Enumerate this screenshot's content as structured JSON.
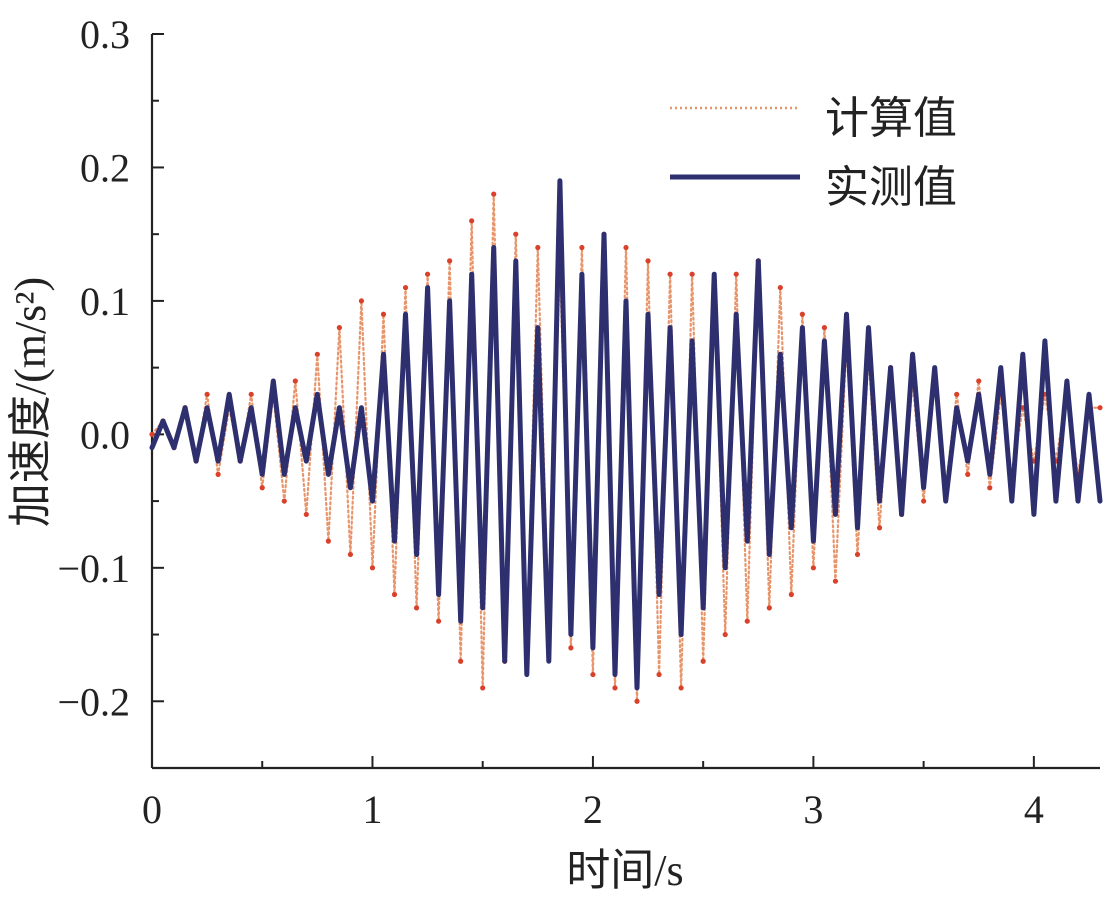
{
  "chart_data": {
    "type": "line",
    "xlabel": "时间/s",
    "ylabel": "加速度/(m/s²)",
    "xlim": [
      0,
      4.3
    ],
    "ylim": [
      -0.25,
      0.3
    ],
    "x_ticks": [
      0,
      1,
      2,
      3,
      4
    ],
    "x_tick_labels": [
      "0",
      "1",
      "2",
      "3",
      "4"
    ],
    "x_minor_ticks": [
      0.5,
      1.5,
      2.5,
      3.5
    ],
    "y_ticks": [
      -0.2,
      -0.1,
      0.0,
      0.1,
      0.2,
      0.3
    ],
    "y_tick_labels": [
      "−0.2",
      "−0.1",
      "0.0",
      "0.1",
      "0.2",
      "0.3"
    ],
    "grid": false,
    "legend_position": "top-right",
    "series": [
      {
        "name": "计算值",
        "style": "dotted",
        "color": "#e8956b",
        "dot_color": "#d9412a",
        "x": [
          0.0,
          0.05,
          0.1,
          0.15,
          0.2,
          0.25,
          0.3,
          0.35,
          0.4,
          0.45,
          0.5,
          0.55,
          0.6,
          0.65,
          0.7,
          0.75,
          0.8,
          0.85,
          0.9,
          0.95,
          1.0,
          1.05,
          1.1,
          1.15,
          1.2,
          1.25,
          1.3,
          1.35,
          1.4,
          1.45,
          1.5,
          1.55,
          1.6,
          1.65,
          1.7,
          1.75,
          1.8,
          1.85,
          1.9,
          1.95,
          2.0,
          2.05,
          2.1,
          2.15,
          2.2,
          2.25,
          2.3,
          2.35,
          2.4,
          2.45,
          2.5,
          2.55,
          2.6,
          2.65,
          2.7,
          2.75,
          2.8,
          2.85,
          2.9,
          2.95,
          3.0,
          3.05,
          3.1,
          3.15,
          3.2,
          3.25,
          3.3,
          3.35,
          3.4,
          3.45,
          3.5,
          3.55,
          3.6,
          3.65,
          3.7,
          3.75,
          3.8,
          3.85,
          3.9,
          3.95,
          4.0,
          4.05,
          4.1,
          4.15,
          4.2,
          4.25,
          4.3
        ],
        "values": [
          0.0,
          0.01,
          -0.01,
          0.02,
          -0.02,
          0.03,
          -0.03,
          0.02,
          -0.02,
          0.03,
          -0.04,
          0.03,
          -0.05,
          0.04,
          -0.06,
          0.06,
          -0.08,
          0.08,
          -0.09,
          0.1,
          -0.1,
          0.09,
          -0.12,
          0.11,
          -0.13,
          0.12,
          -0.14,
          0.13,
          -0.17,
          0.16,
          -0.19,
          0.18,
          -0.17,
          0.15,
          -0.16,
          0.14,
          -0.15,
          0.13,
          -0.16,
          0.14,
          -0.18,
          0.15,
          -0.19,
          0.14,
          -0.2,
          0.13,
          -0.18,
          0.12,
          -0.19,
          0.12,
          -0.17,
          0.11,
          -0.15,
          0.12,
          -0.14,
          0.13,
          -0.13,
          0.11,
          -0.12,
          0.09,
          -0.1,
          0.08,
          -0.11,
          0.07,
          -0.09,
          0.06,
          -0.07,
          0.05,
          -0.06,
          0.04,
          -0.05,
          0.04,
          -0.04,
          0.03,
          -0.03,
          0.04,
          -0.04,
          0.03,
          -0.03,
          0.02,
          -0.02,
          0.03,
          -0.02,
          0.03,
          -0.03,
          0.02,
          0.02
        ]
      },
      {
        "name": "实测值",
        "style": "solid",
        "color": "#2e2f6e",
        "x": [
          0.0,
          0.05,
          0.1,
          0.15,
          0.2,
          0.25,
          0.3,
          0.35,
          0.4,
          0.45,
          0.5,
          0.55,
          0.6,
          0.65,
          0.7,
          0.75,
          0.8,
          0.85,
          0.9,
          0.95,
          1.0,
          1.05,
          1.1,
          1.15,
          1.2,
          1.25,
          1.3,
          1.35,
          1.4,
          1.45,
          1.5,
          1.55,
          1.6,
          1.65,
          1.7,
          1.75,
          1.8,
          1.85,
          1.9,
          1.95,
          2.0,
          2.05,
          2.1,
          2.15,
          2.2,
          2.25,
          2.3,
          2.35,
          2.4,
          2.45,
          2.5,
          2.55,
          2.6,
          2.65,
          2.7,
          2.75,
          2.8,
          2.85,
          2.9,
          2.95,
          3.0,
          3.05,
          3.1,
          3.15,
          3.2,
          3.25,
          3.3,
          3.35,
          3.4,
          3.45,
          3.5,
          3.55,
          3.6,
          3.65,
          3.7,
          3.75,
          3.8,
          3.85,
          3.9,
          3.95,
          4.0,
          4.05,
          4.1,
          4.15,
          4.2,
          4.25,
          4.3
        ],
        "values": [
          -0.01,
          0.01,
          -0.01,
          0.02,
          -0.02,
          0.02,
          -0.02,
          0.03,
          -0.02,
          0.02,
          -0.03,
          0.04,
          -0.03,
          0.02,
          -0.02,
          0.03,
          -0.03,
          0.02,
          -0.04,
          0.02,
          -0.05,
          0.06,
          -0.08,
          0.09,
          -0.09,
          0.11,
          -0.12,
          0.1,
          -0.14,
          0.12,
          -0.13,
          0.14,
          -0.17,
          0.13,
          -0.18,
          0.08,
          -0.17,
          0.19,
          -0.15,
          0.12,
          -0.16,
          0.15,
          -0.18,
          0.1,
          -0.19,
          0.09,
          -0.12,
          0.08,
          -0.15,
          0.07,
          -0.13,
          0.12,
          -0.1,
          0.09,
          -0.08,
          0.13,
          -0.09,
          0.06,
          -0.07,
          0.08,
          -0.08,
          0.07,
          -0.06,
          0.09,
          -0.07,
          0.08,
          -0.05,
          0.05,
          -0.06,
          0.06,
          -0.04,
          0.05,
          -0.05,
          0.02,
          -0.02,
          0.03,
          -0.03,
          0.05,
          -0.05,
          0.06,
          -0.06,
          0.07,
          -0.05,
          0.04,
          -0.05,
          0.03,
          -0.05
        ]
      }
    ]
  }
}
